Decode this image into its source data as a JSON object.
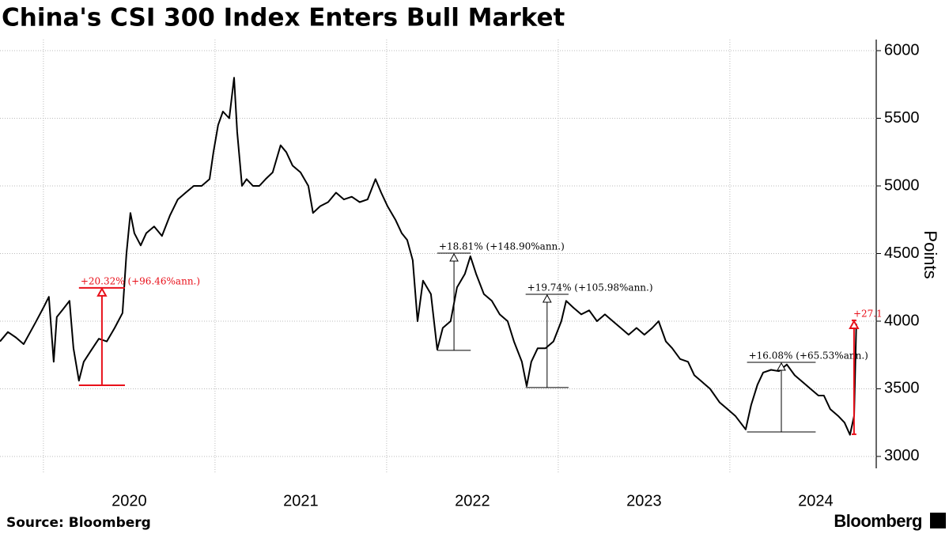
{
  "chart_data": {
    "type": "line",
    "title": "China's CSI 300 Index Enters Bull Market",
    "y_axis_label": "Points",
    "source": "Source: Bloomberg",
    "brand": "Bloomberg",
    "x": [
      2019.747,
      2019.793,
      2019.839,
      2019.885,
      2019.954,
      2020.0,
      2020.032,
      2020.06,
      2020.078,
      2020.115,
      2020.152,
      2020.175,
      2020.207,
      2020.235,
      2020.276,
      2020.323,
      2020.369,
      2020.415,
      2020.461,
      2020.484,
      2020.507,
      2020.53,
      2020.567,
      2020.599,
      2020.645,
      2020.691,
      2020.737,
      2020.783,
      2020.829,
      2020.876,
      2020.922,
      2020.968,
      2020.991,
      2021.018,
      2021.046,
      2021.083,
      2021.111,
      2021.129,
      2021.157,
      2021.184,
      2021.221,
      2021.258,
      2021.295,
      2021.336,
      2021.382,
      2021.415,
      2021.452,
      2021.498,
      2021.544,
      2021.571,
      2021.613,
      2021.659,
      2021.705,
      2021.751,
      2021.797,
      2021.843,
      2021.889,
      2021.935,
      2021.968,
      2022.005,
      2022.051,
      2022.088,
      2022.12,
      2022.152,
      2022.18,
      2022.212,
      2022.258,
      2022.295,
      2022.327,
      2022.373,
      2022.41,
      2022.456,
      2022.488,
      2022.521,
      2022.567,
      2022.613,
      2022.659,
      2022.705,
      2022.742,
      2022.788,
      2022.816,
      2022.843,
      2022.88,
      2022.926,
      2022.972,
      2023.018,
      2023.046,
      2023.088,
      2023.134,
      2023.18,
      2023.226,
      2023.272,
      2023.318,
      2023.364,
      2023.41,
      2023.456,
      2023.502,
      2023.548,
      2023.585,
      2023.627,
      2023.664,
      2023.71,
      2023.756,
      2023.793,
      2023.839,
      2023.885,
      2023.94,
      2023.986,
      2024.032,
      2024.092,
      2024.124,
      2024.161,
      2024.194,
      2024.24,
      2024.286,
      2024.332,
      2024.378,
      2024.424,
      2024.47,
      2024.516,
      2024.548,
      2024.585,
      2024.631,
      2024.668,
      2024.7,
      2024.724,
      2024.737
    ],
    "series": [
      {
        "name": "CSI 300",
        "color": "#000000",
        "values": [
          3850,
          3920,
          3880,
          3830,
          3990,
          4100,
          4180,
          3700,
          4030,
          4090,
          4150,
          3800,
          3560,
          3700,
          3780,
          3870,
          3850,
          3950,
          4060,
          4500,
          4800,
          4650,
          4560,
          4650,
          4700,
          4630,
          4780,
          4900,
          4950,
          5000,
          5000,
          5050,
          5250,
          5450,
          5550,
          5500,
          5800,
          5400,
          5000,
          5050,
          5000,
          5000,
          5050,
          5100,
          5300,
          5250,
          5150,
          5100,
          5000,
          4800,
          4850,
          4880,
          4950,
          4900,
          4920,
          4880,
          4900,
          5050,
          4950,
          4850,
          4750,
          4650,
          4600,
          4450,
          4000,
          4300,
          4200,
          3790,
          3950,
          4000,
          4250,
          4350,
          4480,
          4350,
          4200,
          4150,
          4050,
          4000,
          3850,
          3700,
          3520,
          3700,
          3800,
          3800,
          3850,
          4000,
          4150,
          4100,
          4050,
          4080,
          4000,
          4050,
          4000,
          3950,
          3900,
          3950,
          3900,
          3950,
          4000,
          3850,
          3800,
          3720,
          3700,
          3600,
          3550,
          3500,
          3400,
          3350,
          3300,
          3200,
          3380,
          3530,
          3620,
          3640,
          3630,
          3680,
          3600,
          3550,
          3500,
          3450,
          3450,
          3350,
          3300,
          3250,
          3160,
          3300,
          3980
        ]
      }
    ],
    "xlim": [
      2019.747,
      2024.853
    ],
    "xticks": [
      {
        "value": 2020,
        "label": "2020"
      },
      {
        "value": 2021,
        "label": "2021"
      },
      {
        "value": 2022,
        "label": "2022"
      },
      {
        "value": 2023,
        "label": "2023"
      },
      {
        "value": 2024,
        "label": "2024"
      }
    ],
    "ylim": [
      2912,
      6082
    ],
    "yticks": [
      3000,
      3500,
      4000,
      4500,
      5000,
      5500,
      6000
    ],
    "grid": true,
    "annotations": [
      {
        "text": "+20.32% (+96.46%ann.)",
        "x0": 2020.207,
        "x1": 2020.475,
        "low": 3526,
        "high": 4246,
        "color": "#e8101a"
      },
      {
        "text": "+18.81% (+148.90%ann.)",
        "x0": 2022.295,
        "x1": 2022.49,
        "low": 3784,
        "high": 4503,
        "color": "#000000"
      },
      {
        "text": "+19.74% (+105.98%ann.)",
        "x0": 2022.81,
        "x1": 2023.06,
        "low": 3509,
        "high": 4199,
        "color": "#000000"
      },
      {
        "text": "+16.08% (+65.53%ann.)",
        "x0": 2024.1,
        "x1": 2024.5,
        "low": 3181,
        "high": 3696,
        "color": "#000000"
      },
      {
        "text": "+27.1",
        "x0": 2024.71,
        "x1": 2024.737,
        "low": 3164,
        "high": 4006,
        "color": "#e8101a"
      }
    ]
  }
}
